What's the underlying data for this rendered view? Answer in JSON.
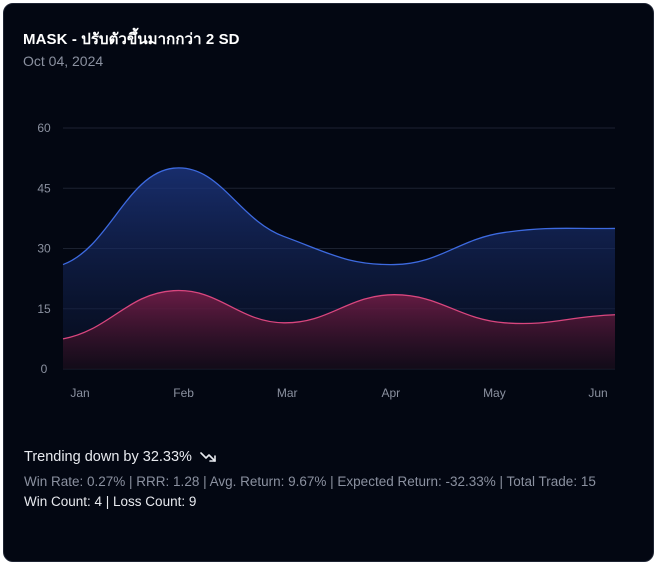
{
  "card": {
    "title": "MASK - ปรับตัวขึ้นมากกว่า 2 SD",
    "date": "Oct 04, 2024"
  },
  "chart_data": {
    "type": "area",
    "categories": [
      "Jan",
      "Feb",
      "Mar",
      "Apr",
      "May",
      "Jun"
    ],
    "y_ticks": [
      "0",
      "15",
      "30",
      "45",
      "60"
    ],
    "ylim": [
      0,
      60
    ],
    "grid": true,
    "series": [
      {
        "values": [
          26,
          50,
          33,
          26,
          34,
          35
        ],
        "color": "#3d6ae0"
      },
      {
        "values": [
          7.5,
          19.5,
          11.5,
          18.5,
          11.5,
          13.5
        ],
        "color": "#d9467e"
      }
    ]
  },
  "footer": {
    "trend_text": "Trending down by 32.33%",
    "trend_icon": "trending-down-icon",
    "stats_line": "Win Rate: 0.27% | RRR: 1.28 | Avg. Return: 9.67% | Expected Return: -32.33% | Total Trade: 15",
    "counts_line": "Win Count: 4 | Loss Count: 9"
  }
}
